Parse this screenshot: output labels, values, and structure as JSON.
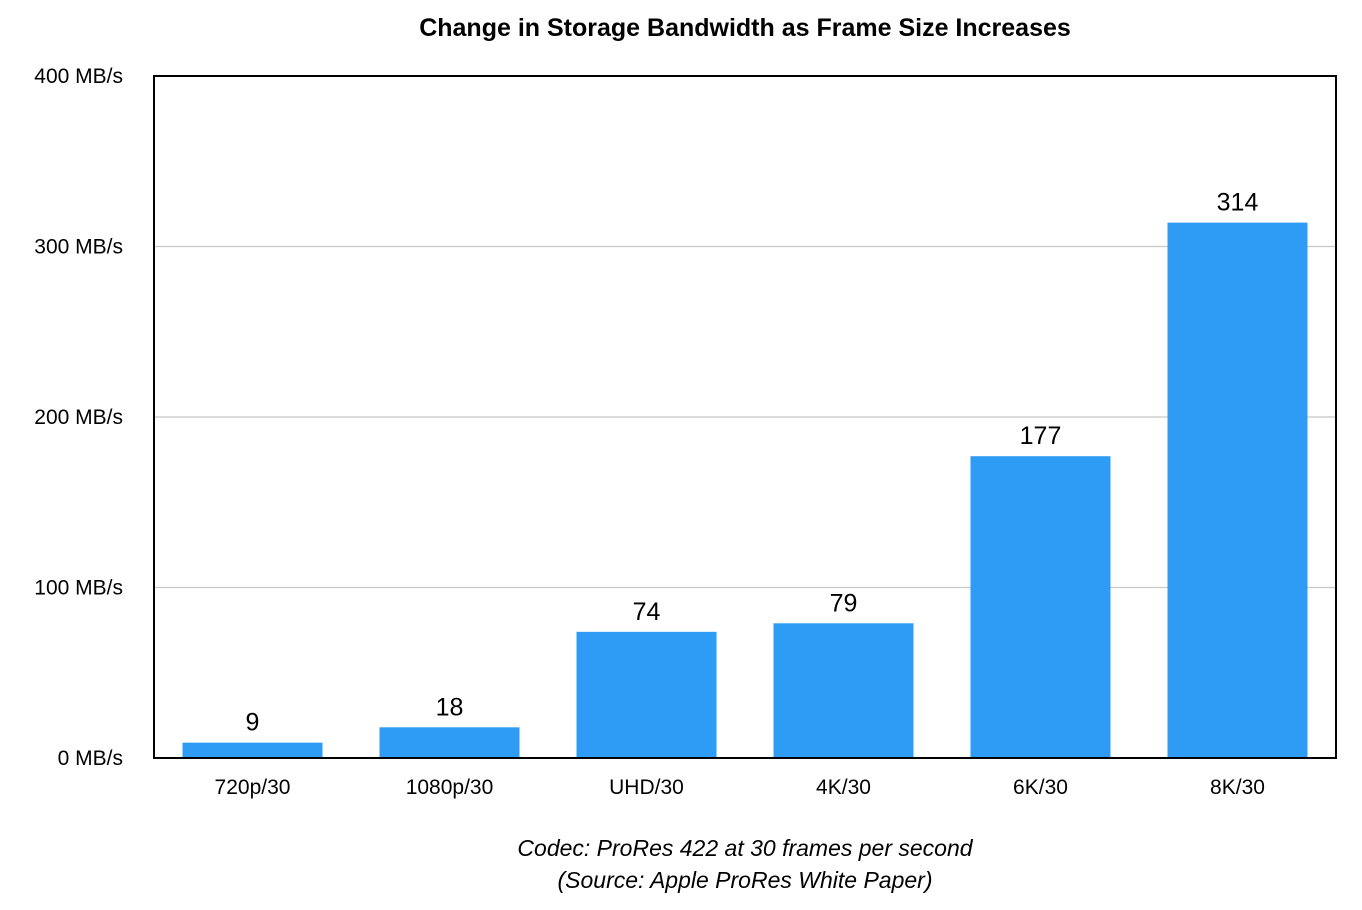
{
  "chart_data": {
    "type": "bar",
    "title": "Change in Storage Bandwidth as Frame Size Increases",
    "categories": [
      "720p/30",
      "1080p/30",
      "UHD/30",
      "4K/30",
      "6K/30",
      "8K/30"
    ],
    "values": [
      9,
      18,
      74,
      79,
      177,
      314
    ],
    "data_labels": [
      "9",
      "18",
      "74",
      "79",
      "177",
      "314"
    ],
    "ylim": [
      0,
      400
    ],
    "yticks": [
      0,
      100,
      200,
      300,
      400
    ],
    "ytick_labels": [
      "0 MB/s",
      "100 MB/s",
      "200 MB/s",
      "300 MB/s",
      "400 MB/s"
    ],
    "xlabel": "",
    "ylabel": "",
    "grid": true,
    "legend": "none",
    "bar_color": "#2E9BF5",
    "gridline_color": "#C8C8C8",
    "axis_color": "#000000",
    "caption": [
      "Codec: ProRes 422 at 30 frames per second",
      "(Source: Apple ProRes White Paper)"
    ]
  }
}
